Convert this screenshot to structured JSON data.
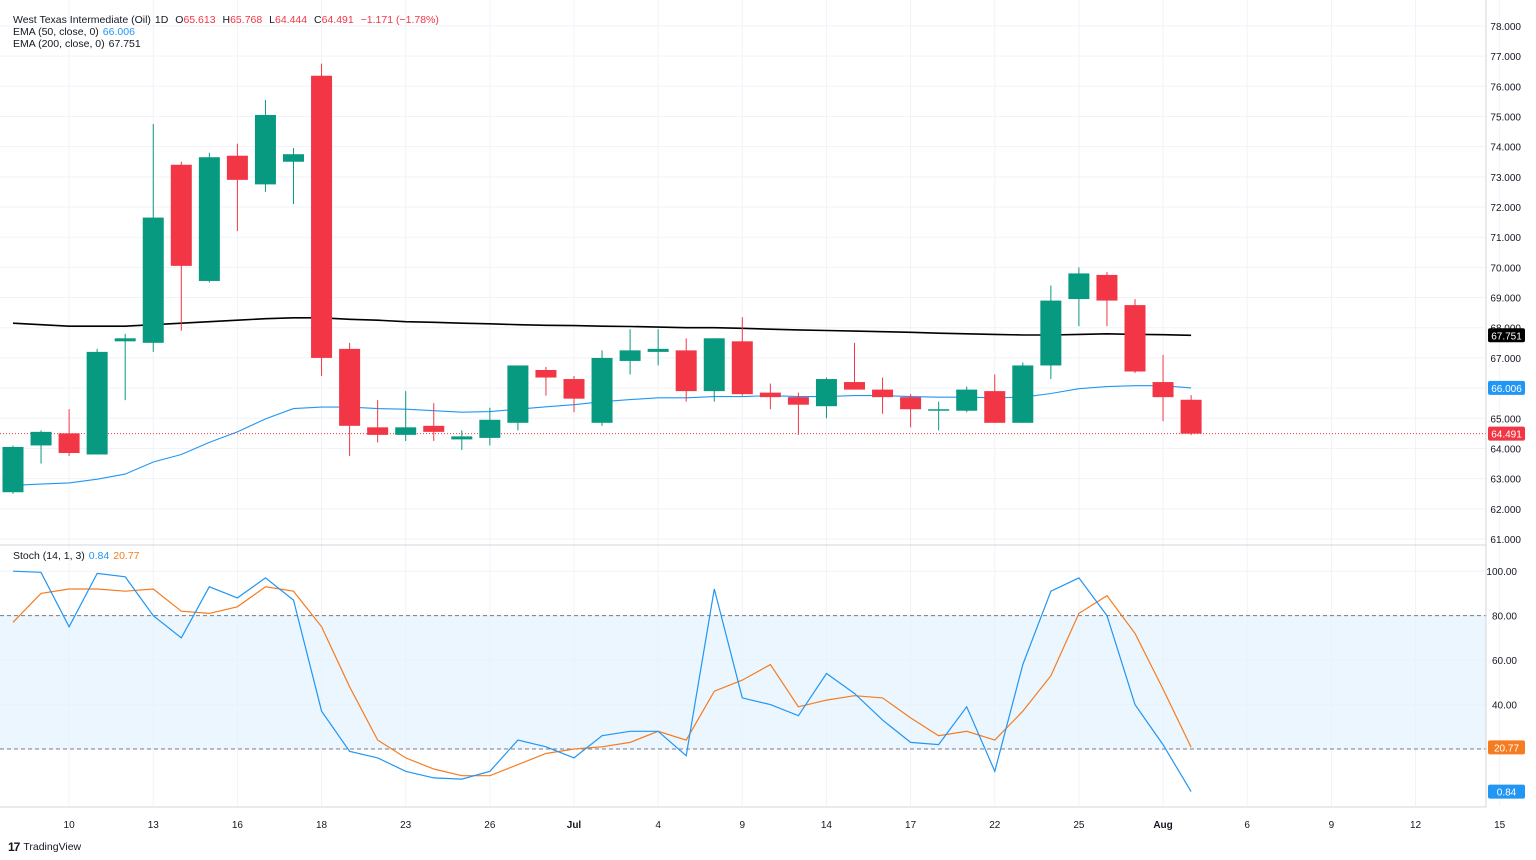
{
  "header": {
    "symbol": "West Texas Intermediate (Oil)",
    "interval": "1D",
    "ohlc": {
      "o_label": "O",
      "o": "65.613",
      "h_label": "H",
      "h": "65.768",
      "l_label": "L",
      "l": "64.444",
      "c_label": "C",
      "c": "64.491",
      "change": "−1.171 (−1.78%)"
    }
  },
  "indicators": {
    "ema50": {
      "label": "EMA (50, close, 0)",
      "value": "66.006"
    },
    "ema200": {
      "label": "EMA (200, close, 0)",
      "value": "67.751"
    },
    "stoch": {
      "label": "Stoch (14, 1, 3)",
      "k_value": "0.84",
      "d_value": "20.77"
    }
  },
  "colors": {
    "up": "#089981",
    "down": "#f23645",
    "ema50": "#2196f3",
    "ema200": "#000000",
    "stoch_k": "#2196f3",
    "stoch_d": "#f57c20",
    "band": "#e3f2fd",
    "grid": "#f0f3fa",
    "last_price": "#f23645"
  },
  "brand": {
    "logo": "17",
    "name": "TradingView"
  },
  "chart_data": [
    {
      "type": "candlestick",
      "title": "",
      "ylim": [
        61,
        78
      ],
      "y_ticks": [
        "61.000",
        "62.000",
        "63.000",
        "64.000",
        "65.000",
        "66.000",
        "67.000",
        "68.000",
        "69.000",
        "70.000",
        "71.000",
        "72.000",
        "73.000",
        "74.000",
        "75.000",
        "76.000",
        "77.000",
        "78.000"
      ],
      "x_tick_labels": [
        "10",
        "13",
        "16",
        "18",
        "23",
        "26",
        "Jul",
        "4",
        "9",
        "14",
        "17",
        "22",
        "25",
        "Aug",
        "6",
        "9",
        "12",
        "15"
      ],
      "x_tick_positions": [
        2.0,
        5.0,
        8.0,
        11.0,
        14.0,
        17.0,
        20.0,
        23.0,
        26.0,
        29.0,
        32.0,
        35.0,
        38.0,
        41.0,
        44.0,
        47.0,
        50.0,
        53.0
      ],
      "candles": [
        {
          "x": 0,
          "o": 62.55,
          "h": 64.1,
          "l": 62.5,
          "c": 64.05
        },
        {
          "x": 1,
          "o": 64.1,
          "h": 64.6,
          "l": 63.5,
          "c": 64.55
        },
        {
          "x": 2,
          "o": 64.5,
          "h": 65.3,
          "l": 63.75,
          "c": 63.85
        },
        {
          "x": 3,
          "o": 63.8,
          "h": 67.3,
          "l": 63.8,
          "c": 67.2
        },
        {
          "x": 4,
          "o": 67.55,
          "h": 67.8,
          "l": 65.6,
          "c": 67.65
        },
        {
          "x": 5,
          "o": 67.5,
          "h": 74.75,
          "l": 67.2,
          "c": 71.65
        },
        {
          "x": 6,
          "o": 73.4,
          "h": 73.5,
          "l": 67.9,
          "c": 70.05
        },
        {
          "x": 7,
          "o": 69.55,
          "h": 73.8,
          "l": 69.5,
          "c": 73.65
        },
        {
          "x": 8,
          "o": 73.7,
          "h": 74.1,
          "l": 71.2,
          "c": 72.9
        },
        {
          "x": 9,
          "o": 72.75,
          "h": 75.55,
          "l": 72.5,
          "c": 75.05
        },
        {
          "x": 10,
          "o": 73.5,
          "h": 73.95,
          "l": 72.1,
          "c": 73.75
        },
        {
          "x": 11,
          "o": 76.35,
          "h": 76.75,
          "l": 66.4,
          "c": 67.0
        },
        {
          "x": 12,
          "o": 67.3,
          "h": 67.5,
          "l": 63.75,
          "c": 64.75
        },
        {
          "x": 13,
          "o": 64.7,
          "h": 65.6,
          "l": 64.2,
          "c": 64.45
        },
        {
          "x": 14,
          "o": 64.45,
          "h": 65.9,
          "l": 64.25,
          "c": 64.7
        },
        {
          "x": 15,
          "o": 64.75,
          "h": 65.5,
          "l": 64.25,
          "c": 64.55
        },
        {
          "x": 16,
          "o": 64.3,
          "h": 64.6,
          "l": 63.95,
          "c": 64.4
        },
        {
          "x": 17,
          "o": 64.35,
          "h": 65.35,
          "l": 64.1,
          "c": 64.95
        },
        {
          "x": 18,
          "o": 64.85,
          "h": 66.75,
          "l": 64.6,
          "c": 66.75
        },
        {
          "x": 19,
          "o": 66.6,
          "h": 66.7,
          "l": 65.75,
          "c": 66.35
        },
        {
          "x": 20,
          "o": 66.3,
          "h": 66.4,
          "l": 65.2,
          "c": 65.65
        },
        {
          "x": 21,
          "o": 64.85,
          "h": 67.25,
          "l": 64.75,
          "c": 67.0
        },
        {
          "x": 22,
          "o": 66.9,
          "h": 67.95,
          "l": 66.45,
          "c": 67.25
        },
        {
          "x": 23,
          "o": 67.2,
          "h": 67.95,
          "l": 66.75,
          "c": 67.3
        },
        {
          "x": 24,
          "o": 67.25,
          "h": 67.65,
          "l": 65.55,
          "c": 65.9
        },
        {
          "x": 25,
          "o": 65.9,
          "h": 67.65,
          "l": 65.55,
          "c": 67.65
        },
        {
          "x": 26,
          "o": 67.55,
          "h": 68.35,
          "l": 65.75,
          "c": 65.8
        },
        {
          "x": 27,
          "o": 65.85,
          "h": 66.15,
          "l": 65.3,
          "c": 65.7
        },
        {
          "x": 28,
          "o": 65.7,
          "h": 65.85,
          "l": 64.45,
          "c": 65.45
        },
        {
          "x": 29,
          "o": 65.4,
          "h": 66.35,
          "l": 65.0,
          "c": 66.3
        },
        {
          "x": 30,
          "o": 66.2,
          "h": 67.5,
          "l": 65.95,
          "c": 65.95
        },
        {
          "x": 31,
          "o": 65.95,
          "h": 66.35,
          "l": 65.15,
          "c": 65.7
        },
        {
          "x": 32,
          "o": 65.7,
          "h": 65.8,
          "l": 64.7,
          "c": 65.3
        },
        {
          "x": 33,
          "o": 65.3,
          "h": 65.55,
          "l": 64.6,
          "c": 65.3
        },
        {
          "x": 34,
          "o": 65.25,
          "h": 66.05,
          "l": 65.2,
          "c": 65.95
        },
        {
          "x": 35,
          "o": 65.9,
          "h": 66.45,
          "l": 64.85,
          "c": 64.85
        },
        {
          "x": 36,
          "o": 64.85,
          "h": 66.85,
          "l": 64.85,
          "c": 66.75
        },
        {
          "x": 37,
          "o": 66.75,
          "h": 69.4,
          "l": 66.3,
          "c": 68.9
        },
        {
          "x": 38,
          "o": 68.95,
          "h": 70.0,
          "l": 68.05,
          "c": 69.8
        },
        {
          "x": 39,
          "o": 69.75,
          "h": 69.85,
          "l": 68.05,
          "c": 68.9
        },
        {
          "x": 40,
          "o": 68.75,
          "h": 68.95,
          "l": 66.5,
          "c": 66.55
        },
        {
          "x": 41,
          "o": 66.2,
          "h": 67.1,
          "l": 64.9,
          "c": 65.7
        },
        {
          "x": 42,
          "o": 65.613,
          "h": 65.768,
          "l": 64.444,
          "c": 64.491
        }
      ],
      "ema50": [
        62.78,
        62.82,
        62.86,
        62.98,
        63.15,
        63.55,
        63.8,
        64.2,
        64.55,
        64.98,
        65.32,
        65.37,
        65.37,
        65.32,
        65.3,
        65.25,
        65.2,
        65.22,
        65.3,
        65.38,
        65.45,
        65.55,
        65.62,
        65.68,
        65.68,
        65.72,
        65.72,
        65.75,
        65.72,
        65.72,
        65.75,
        65.75,
        65.72,
        65.7,
        65.7,
        65.68,
        65.7,
        65.82,
        65.98,
        66.05,
        66.08,
        66.08,
        66.006
      ],
      "ema200": [
        68.15,
        68.1,
        68.05,
        68.05,
        68.05,
        68.1,
        68.15,
        68.2,
        68.25,
        68.3,
        68.33,
        68.33,
        68.28,
        68.25,
        68.2,
        68.18,
        68.15,
        68.13,
        68.1,
        68.08,
        68.07,
        68.05,
        68.04,
        68.02,
        68.0,
        68.0,
        67.98,
        67.95,
        67.93,
        67.91,
        67.89,
        67.87,
        67.85,
        67.82,
        67.8,
        67.78,
        67.76,
        67.76,
        67.78,
        67.8,
        67.78,
        67.77,
        67.751
      ],
      "last_price": {
        "value": 64.491,
        "label": "64.491"
      },
      "ema50_label": "66.006",
      "ema200_label": "67.751"
    },
    {
      "type": "line",
      "title": "Stoch (14, 1, 3)",
      "ylim": [
        0,
        100
      ],
      "y_ticks": [
        "20.00",
        "40.00",
        "60.00",
        "80.00",
        "100.00"
      ],
      "band": [
        20,
        80
      ],
      "series": [
        {
          "name": "%K",
          "values": [
            100,
            99.5,
            75,
            99,
            97.5,
            80,
            70,
            93,
            88,
            97,
            87,
            37,
            19,
            16,
            10,
            7,
            6.5,
            10,
            24,
            21,
            16,
            26,
            28,
            28,
            17,
            92,
            43,
            40,
            35,
            54,
            45,
            33,
            23,
            22,
            39,
            10,
            58,
            91,
            97,
            80,
            40,
            22,
            0.84
          ]
        },
        {
          "name": "%D",
          "values": [
            77,
            90,
            92,
            92,
            91,
            92,
            82,
            81,
            84,
            93,
            91,
            75,
            48,
            24,
            16,
            11,
            8,
            8,
            13,
            18,
            20,
            21,
            23,
            28,
            24,
            46,
            51,
            58,
            39,
            42,
            44,
            43,
            34,
            26,
            28,
            24,
            37,
            53,
            81,
            89,
            72,
            47,
            20.77
          ]
        }
      ]
    }
  ]
}
